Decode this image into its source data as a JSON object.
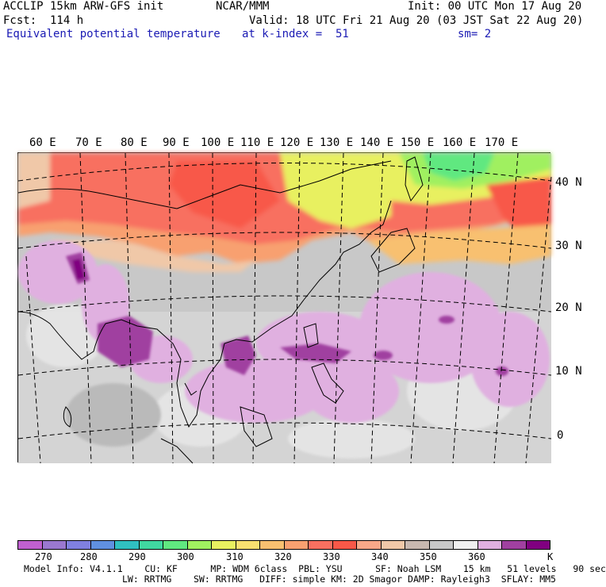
{
  "header": {
    "left1": "ACCLIP 15km ARW-GFS init",
    "left2": "Fcst:  114 h",
    "left3": "Equivalent potential temperature",
    "center1": "NCAR/MMM",
    "center3": "at k-index =  51",
    "right1": "Init: 00 UTC Mon 17 Aug 20",
    "right2": "Valid: 18 UTC Fri 21 Aug 20 (03 JST Sat 22 Aug 20)",
    "right3": "sm= 2"
  },
  "map": {
    "lon_labels": [
      "60 E",
      "70 E",
      "80 E",
      "90 E",
      "100 E",
      "110 E",
      "120 E",
      "130 E",
      "140 E",
      "150 E",
      "160 E",
      "170 E"
    ],
    "lat_labels": [
      "40 N",
      "30 N",
      "20 N",
      "10 N",
      "0"
    ]
  },
  "colorbar": {
    "colors": [
      "#c060d0",
      "#9a78d0",
      "#8080e0",
      "#6090e0",
      "#30c0c0",
      "#40d8a0",
      "#60e880",
      "#a0f060",
      "#e8f060",
      "#f8e070",
      "#f8c070",
      "#f8a070",
      "#f87060",
      "#f85848",
      "#f8a888",
      "#f0c8a8",
      "#c8b8b0",
      "#c8c8c8",
      "#f0f0f0",
      "#e0b0e0",
      "#a040a0",
      "#800080"
    ],
    "tick_labels": [
      "270",
      "280",
      "290",
      "300",
      "310",
      "320",
      "330",
      "340",
      "350",
      "360"
    ],
    "unit": "K"
  },
  "footer": {
    "line1": "Model Info: V4.1.1    CU: KF      MP: WDM 6class  PBL: YSU      SF: Noah LSM    15 km   51 levels   90 sec",
    "line2": "LW: RRTMG    SW: RRTMG   DIFF: simple KM: 2D Smagor DAMP: Rayleigh3  SFLAY: MM5"
  }
}
